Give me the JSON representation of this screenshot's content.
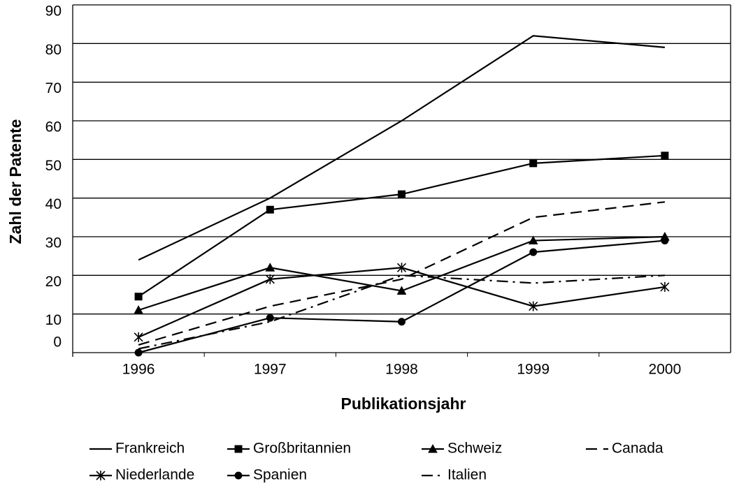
{
  "chart_data": {
    "type": "line",
    "x_label": "Publikationsjahr",
    "y_label": "Zahl der Patente",
    "categories": [
      "1996",
      "1997",
      "1998",
      "1999",
      "2000"
    ],
    "ylim": [
      0,
      90
    ],
    "yticks": [
      0,
      10,
      20,
      30,
      40,
      50,
      60,
      70,
      80,
      90
    ],
    "grid": true,
    "series": [
      {
        "name": "Frankreich",
        "color": "#000000",
        "dash": "solid",
        "marker": "none",
        "values": [
          24,
          40,
          60,
          82,
          79
        ]
      },
      {
        "name": "Großbritannien",
        "color": "#000000",
        "dash": "solid",
        "marker": "square",
        "values": [
          14.5,
          37,
          41,
          49,
          51
        ]
      },
      {
        "name": "Schweiz",
        "color": "#000000",
        "dash": "solid",
        "marker": "triangle",
        "values": [
          11,
          22,
          16,
          29,
          30
        ]
      },
      {
        "name": "Canada",
        "color": "#000000",
        "dash": "dash",
        "marker": "none",
        "values": [
          2,
          12,
          19,
          35,
          39
        ]
      },
      {
        "name": "Niederlande",
        "color": "#000000",
        "dash": "solid",
        "marker": "star",
        "values": [
          4,
          19,
          22,
          12,
          17
        ]
      },
      {
        "name": "Spanien",
        "color": "#000000",
        "dash": "solid",
        "marker": "circle",
        "values": [
          0,
          9,
          8,
          26,
          29
        ]
      },
      {
        "name": "Italien",
        "color": "#000000",
        "dash": "dashdot",
        "marker": "none",
        "values": [
          1,
          8,
          20,
          18,
          20
        ]
      }
    ]
  }
}
